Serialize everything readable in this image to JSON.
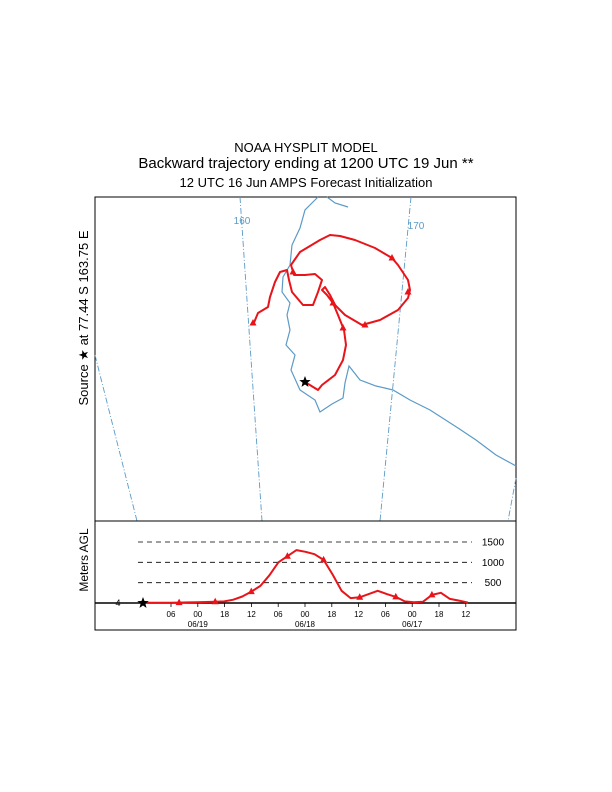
{
  "titles": {
    "model": "NOAA HYSPLIT MODEL",
    "main": "Backward trajectory ending at 1200 UTC 19 Jun **",
    "sub": "12 UTC 16 Jun    AMPS  Forecast Initialization"
  },
  "source_label": "Source ★ at  77.44 S  163.75 E",
  "colors": {
    "trajectory": "#e8141a",
    "coastline": "#5b9ac7",
    "meridian": "#5b9ac7",
    "frame": "#000000",
    "reference_lines": "#000000"
  },
  "chart_data": [
    {
      "type": "line",
      "name": "trajectory-map",
      "meridian_labels": [
        "160",
        "170"
      ],
      "source": {
        "lat": -77.44,
        "lon": 163.75,
        "marker": "star"
      },
      "trajectory_color": "#e8141a",
      "marker": "triangle"
    },
    {
      "type": "line",
      "name": "vertical-profile",
      "ylabel": "Meters AGL",
      "reference_levels": [
        1500,
        1000,
        500
      ],
      "source_height_label": "4",
      "x_ticks": [
        "06",
        "00",
        "18",
        "12",
        "06",
        "00",
        "18",
        "12",
        "06",
        "00",
        "18",
        "12"
      ],
      "date_labels": [
        "06/19",
        "06/18",
        "06/17"
      ],
      "hours_back": [
        0,
        3,
        6,
        9,
        12,
        15,
        18,
        21,
        24,
        27,
        30,
        33,
        36,
        39,
        42,
        45,
        48,
        51,
        54,
        57,
        60,
        63,
        66,
        69,
        72
      ],
      "heights_m": [
        4,
        4,
        5,
        6,
        10,
        15,
        20,
        24,
        30,
        40,
        80,
        160,
        280,
        420,
        680,
        1000,
        1150,
        1300,
        1260,
        1200,
        1060,
        700,
        300,
        120,
        140,
        220,
        300,
        220,
        150,
        40,
        20,
        30,
        200,
        250,
        100,
        60,
        10
      ]
    }
  ]
}
